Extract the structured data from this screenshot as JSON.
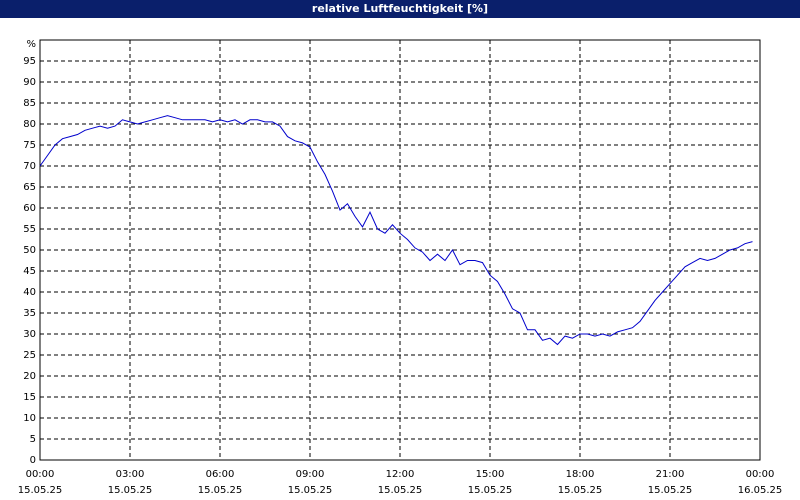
{
  "chart_data": {
    "type": "line",
    "title": "relative Luftfeuchtigkeit [%]",
    "ylabel": "%",
    "xlim": [
      0,
      24
    ],
    "ylim": [
      0,
      100
    ],
    "xticks": [
      {
        "value": 0,
        "label": "00:00"
      },
      {
        "value": 3,
        "label": "03:00"
      },
      {
        "value": 6,
        "label": "06:00"
      },
      {
        "value": 9,
        "label": "09:00"
      },
      {
        "value": 12,
        "label": "12:00"
      },
      {
        "value": 15,
        "label": "15:00"
      },
      {
        "value": 18,
        "label": "18:00"
      },
      {
        "value": 21,
        "label": "21:00"
      },
      {
        "value": 24,
        "label": "00:00"
      }
    ],
    "xtick_dates": [
      "15.05.25",
      "15.05.25",
      "15.05.25",
      "15.05.25",
      "15.05.25",
      "15.05.25",
      "15.05.25",
      "15.05.25",
      "16.05.25"
    ],
    "yticks": [
      0,
      5,
      10,
      15,
      20,
      25,
      30,
      35,
      40,
      45,
      50,
      55,
      60,
      65,
      70,
      75,
      80,
      85,
      90,
      95
    ],
    "grid": true,
    "x": [
      0,
      0.25,
      0.5,
      0.75,
      1,
      1.25,
      1.5,
      1.75,
      2,
      2.25,
      2.5,
      2.75,
      3,
      3.25,
      3.5,
      3.75,
      4,
      4.25,
      4.5,
      4.75,
      5,
      5.25,
      5.5,
      5.75,
      6,
      6.25,
      6.5,
      6.75,
      7,
      7.25,
      7.5,
      7.75,
      8,
      8.25,
      8.5,
      8.75,
      9,
      9.25,
      9.5,
      9.75,
      10,
      10.25,
      10.5,
      10.75,
      11,
      11.25,
      11.5,
      11.75,
      12,
      12.25,
      12.5,
      12.75,
      13,
      13.25,
      13.5,
      13.75,
      14,
      14.25,
      14.5,
      14.75,
      15,
      15.25,
      15.5,
      15.75,
      16,
      16.25,
      16.5,
      16.75,
      17,
      17.25,
      17.5,
      17.75,
      18,
      18.25,
      18.5,
      18.75,
      19,
      19.25,
      19.5,
      19.75,
      20,
      20.25,
      20.5,
      20.75,
      21,
      21.25,
      21.5,
      21.75,
      22,
      22.25,
      22.5,
      22.75,
      23,
      23.25,
      23.5,
      23.75
    ],
    "series": [
      {
        "color": "#0000cc",
        "values": [
          70,
          72.5,
          75,
          76.5,
          77,
          77.5,
          78.5,
          79,
          79.5,
          79,
          79.5,
          81,
          80.5,
          80,
          80.5,
          81,
          81.5,
          82,
          81.5,
          81,
          81,
          81,
          81,
          80.5,
          81,
          80.5,
          81,
          80,
          81,
          81,
          80.5,
          80.5,
          79.5,
          77,
          76,
          75.5,
          74.5,
          71,
          68,
          64,
          59.5,
          61,
          58,
          55.5,
          59,
          55,
          54,
          56,
          54,
          52.5,
          50.5,
          49.5,
          47.5,
          49,
          47.5,
          50,
          46.5,
          47.5,
          47.5,
          47,
          44,
          42.5,
          39.5,
          36,
          35,
          31,
          31,
          28.5,
          29,
          27.5,
          29.5,
          29,
          30,
          30,
          29.5,
          30,
          29.5,
          30.5,
          31,
          31.5,
          33,
          35.5,
          38,
          40,
          42,
          44,
          46,
          47,
          48,
          47.5,
          48,
          49,
          50,
          50.5,
          51.5,
          52
        ]
      }
    ]
  }
}
